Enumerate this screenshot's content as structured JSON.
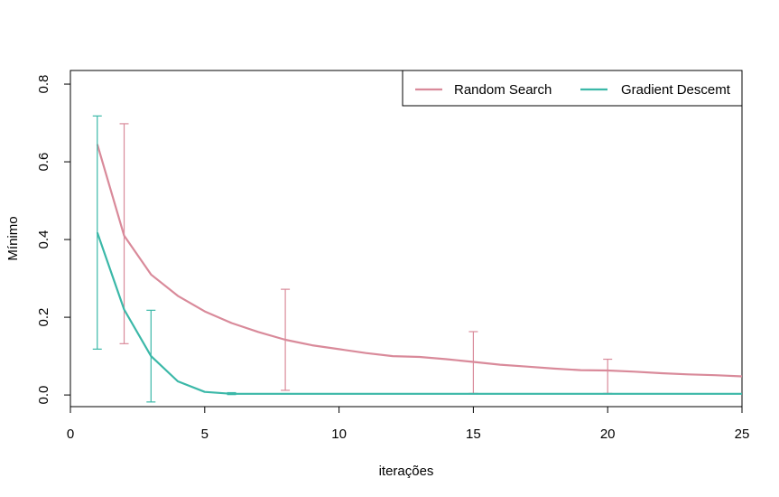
{
  "chart_data": {
    "type": "line",
    "xlabel": "iterações",
    "ylabel": "Mínimo",
    "xlim": [
      0,
      25
    ],
    "ylim": [
      -0.03,
      0.835
    ],
    "xticks": [
      0,
      5,
      10,
      15,
      20,
      25
    ],
    "yticks": [
      0.0,
      0.2,
      0.4,
      0.6,
      0.8
    ],
    "ytick_labels": [
      "0.0",
      "0.2",
      "0.4",
      "0.6",
      "0.8"
    ],
    "grid": false,
    "legend_position": "top-right",
    "series": [
      {
        "name": "Random Search",
        "color": "#d98a9a",
        "x": [
          1,
          2,
          3,
          4,
          5,
          6,
          7,
          8,
          9,
          10,
          11,
          12,
          13,
          14,
          15,
          16,
          17,
          18,
          19,
          20,
          21,
          22,
          23,
          24,
          25
        ],
        "values": [
          0.645,
          0.41,
          0.31,
          0.255,
          0.215,
          0.185,
          0.162,
          0.142,
          0.128,
          0.118,
          0.108,
          0.1,
          0.098,
          0.092,
          0.085,
          0.078,
          0.073,
          0.068,
          0.064,
          0.063,
          0.06,
          0.056,
          0.053,
          0.051,
          0.048
        ],
        "error_bars": [
          {
            "x": 2,
            "low": 0.132,
            "high": 0.698
          },
          {
            "x": 8,
            "low": 0.012,
            "high": 0.272
          },
          {
            "x": 15,
            "low": 0.004,
            "high": 0.163
          },
          {
            "x": 20,
            "low": 0.004,
            "high": 0.092
          }
        ]
      },
      {
        "name": "Gradient Descemt",
        "color": "#3bb8a8",
        "x": [
          1,
          2,
          3,
          4,
          5,
          6,
          7,
          8,
          9,
          10,
          11,
          12,
          13,
          14,
          15,
          16,
          17,
          18,
          19,
          20,
          21,
          22,
          23,
          24,
          25
        ],
        "values": [
          0.418,
          0.22,
          0.1,
          0.035,
          0.008,
          0.003,
          0.003,
          0.003,
          0.003,
          0.003,
          0.003,
          0.003,
          0.003,
          0.003,
          0.003,
          0.003,
          0.003,
          0.003,
          0.003,
          0.003,
          0.003,
          0.003,
          0.003,
          0.003,
          0.003
        ],
        "error_bars": [
          {
            "x": 1,
            "low": 0.118,
            "high": 0.718
          },
          {
            "x": 3,
            "low": -0.018,
            "high": 0.218
          },
          {
            "x": 6,
            "low": 0.001,
            "high": 0.006
          }
        ]
      }
    ]
  }
}
